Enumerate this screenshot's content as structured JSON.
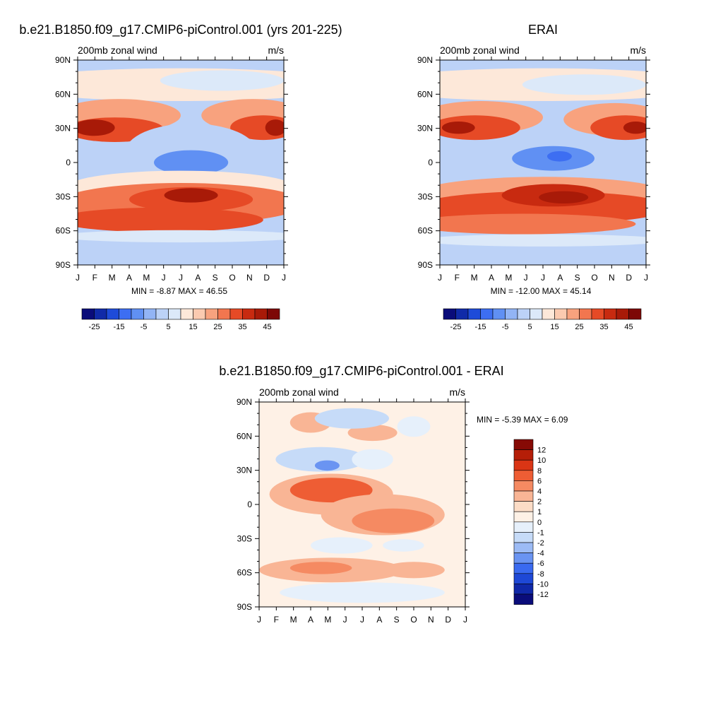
{
  "colors": {
    "wind": [
      "#0a0c7a",
      "#102aa8",
      "#1e4bd9",
      "#3d6ef2",
      "#6090f3",
      "#92b4f5",
      "#bcd2f7",
      "#dce9f9",
      "#fde8d9",
      "#fbcab0",
      "#f8a27e",
      "#f2764f",
      "#e64a26",
      "#c82a10",
      "#a81a08",
      "#7d0806"
    ],
    "diff": [
      "#0a0c7a",
      "#1028a8",
      "#1e48d6",
      "#3a6af0",
      "#6a94f2",
      "#9cbbf5",
      "#c6dbf8",
      "#e6f0fb",
      "#fef1e6",
      "#fcdcc6",
      "#f9b595",
      "#f58a62",
      "#ee5d34",
      "#da3515",
      "#b51e08",
      "#860a05"
    ]
  },
  "panels": {
    "model": {
      "title": "b.e21.B1850.f09_g17.CMIP6-piControl.001 (yrs 201-225)",
      "subtitle_left": "200mb zonal wind",
      "subtitle_right": "m/s",
      "stats": "MIN =  -8.87 MAX =  46.55"
    },
    "obs": {
      "title": "ERAI",
      "subtitle_left": "200mb zonal wind",
      "subtitle_right": "m/s",
      "stats": "MIN = -12.00 MAX =  45.14"
    },
    "diff": {
      "title": "b.e21.B1850.f09_g17.CMIP6-piControl.001 - ERAI",
      "subtitle_left": "200mb zonal wind",
      "subtitle_right": "m/s",
      "stats": "MIN =  -5.39 MAX =   6.09"
    }
  },
  "chart_data": [
    {
      "type": "heatmap",
      "name": "model",
      "title": "b.e21.B1850.f09_g17.CMIP6-piControl.001 (yrs 201-225)",
      "subtitle": "200mb zonal wind",
      "units": "m/s",
      "x_ticks": [
        "J",
        "F",
        "M",
        "A",
        "M",
        "J",
        "J",
        "A",
        "S",
        "O",
        "N",
        "D",
        "J"
      ],
      "y_ticks": [
        "90N",
        "60N",
        "30N",
        "0",
        "30S",
        "60S",
        "90S"
      ],
      "y_range": [
        -90,
        90
      ],
      "min": -8.87,
      "max": 46.55,
      "colorbar_ticks": [
        "-25",
        "-15",
        "-5",
        "5",
        "15",
        "25",
        "35",
        "45"
      ]
    },
    {
      "type": "heatmap",
      "name": "obs",
      "title": "ERAI",
      "subtitle": "200mb zonal wind",
      "units": "m/s",
      "x_ticks": [
        "J",
        "F",
        "M",
        "A",
        "M",
        "J",
        "J",
        "A",
        "S",
        "O",
        "N",
        "D",
        "J"
      ],
      "y_ticks": [
        "90N",
        "60N",
        "30N",
        "0",
        "30S",
        "60S",
        "90S"
      ],
      "y_range": [
        -90,
        90
      ],
      "min": -12.0,
      "max": 45.14,
      "colorbar_ticks": [
        "-25",
        "-15",
        "-5",
        "5",
        "15",
        "25",
        "35",
        "45"
      ]
    },
    {
      "type": "heatmap",
      "name": "difference",
      "title": "b.e21.B1850.f09_g17.CMIP6-piControl.001 - ERAI",
      "subtitle": "200mb zonal wind",
      "units": "m/s",
      "x_ticks": [
        "J",
        "F",
        "M",
        "A",
        "M",
        "J",
        "J",
        "A",
        "S",
        "O",
        "N",
        "D",
        "J"
      ],
      "y_ticks": [
        "90N",
        "60N",
        "30N",
        "0",
        "30S",
        "60S",
        "90S"
      ],
      "y_range": [
        -90,
        90
      ],
      "min": -5.39,
      "max": 6.09,
      "colorbar_ticks": [
        "12",
        "10",
        "8",
        "6",
        "4",
        "2",
        "1",
        "0",
        "-1",
        "-2",
        "-4",
        "-6",
        "-8",
        "-10",
        "-12"
      ]
    }
  ]
}
